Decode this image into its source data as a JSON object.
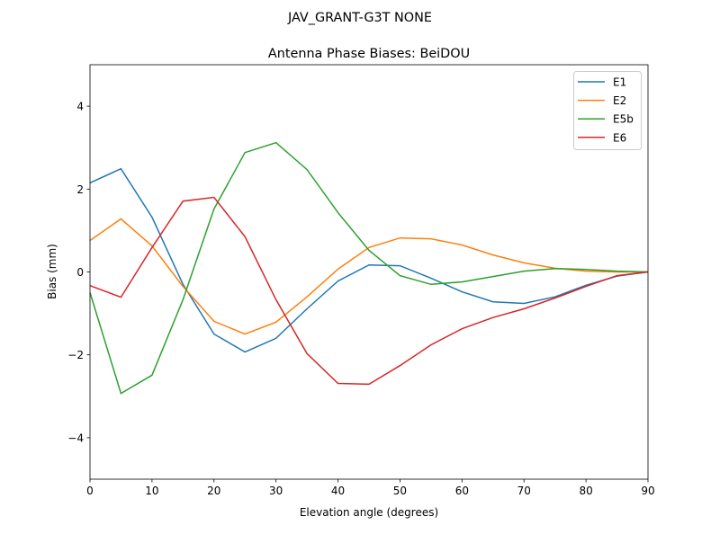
{
  "figure_title": "JAV_GRANT-G3T   NONE",
  "chart_data": {
    "type": "line",
    "title": "Antenna Phase Biases: BeiDOU",
    "xlabel": "Elevation angle (degrees)",
    "ylabel": "Bias (mm)",
    "xlim": [
      0,
      90
    ],
    "ylim": [
      -5,
      5
    ],
    "xticks": [
      0,
      10,
      20,
      30,
      40,
      50,
      60,
      70,
      80,
      90
    ],
    "yticks": [
      -4,
      -2,
      0,
      2,
      4
    ],
    "ytick_labels": [
      "−4",
      "−2",
      "0",
      "2",
      "4"
    ],
    "grid": false,
    "legend_position": "top-right",
    "x": [
      0,
      5,
      10,
      15,
      20,
      25,
      30,
      35,
      40,
      45,
      50,
      55,
      60,
      65,
      70,
      75,
      80,
      85,
      90
    ],
    "series": [
      {
        "name": "E1",
        "color": "#1f77b4",
        "values": [
          2.15,
          2.49,
          1.32,
          -0.3,
          -1.5,
          -1.93,
          -1.6,
          -0.89,
          -0.22,
          0.17,
          0.15,
          -0.15,
          -0.48,
          -0.72,
          -0.76,
          -0.6,
          -0.32,
          -0.1,
          0.0
        ]
      },
      {
        "name": "E2",
        "color": "#ff7f0e",
        "values": [
          0.76,
          1.28,
          0.63,
          -0.35,
          -1.19,
          -1.5,
          -1.21,
          -0.6,
          0.07,
          0.59,
          0.82,
          0.8,
          0.65,
          0.41,
          0.22,
          0.09,
          0.02,
          0.0,
          0.0
        ]
      },
      {
        "name": "E5b",
        "color": "#2ca02c",
        "values": [
          -0.5,
          -2.93,
          -2.49,
          -0.67,
          1.52,
          2.88,
          3.12,
          2.47,
          1.43,
          0.52,
          -0.09,
          -0.3,
          -0.24,
          -0.11,
          0.02,
          0.08,
          0.06,
          0.02,
          0.0
        ]
      },
      {
        "name": "E6",
        "color": "#d62728",
        "values": [
          -0.33,
          -0.61,
          0.59,
          1.71,
          1.8,
          0.85,
          -0.67,
          -1.97,
          -2.69,
          -2.71,
          -2.26,
          -1.76,
          -1.37,
          -1.1,
          -0.89,
          -0.63,
          -0.35,
          -0.09,
          0.0
        ]
      }
    ]
  }
}
